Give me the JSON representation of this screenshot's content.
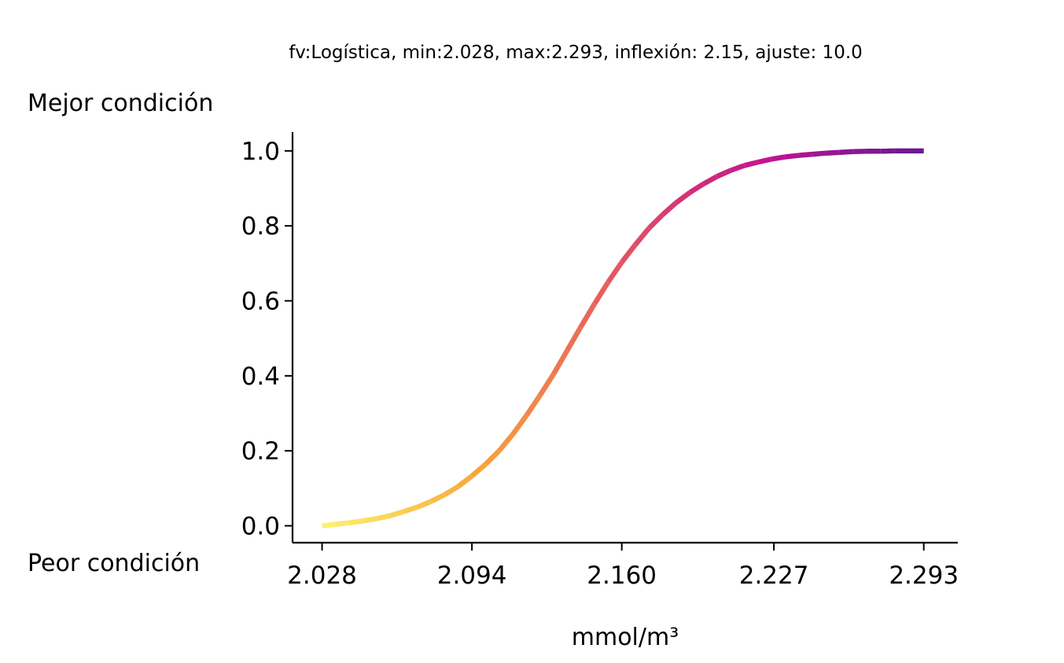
{
  "chart_data": {
    "type": "line",
    "title": "fv:Logística, min:2.028, max:2.293, inflexión: 2.15, ajuste: 10.0",
    "xlabel": "mmol/m³",
    "ylabel": "",
    "label_top": "Mejor condición",
    "label_bottom": "Peor condición",
    "xlim": [
      2.015,
      2.308
    ],
    "ylim": [
      -0.045,
      1.05
    ],
    "x_ticks": [
      2.028,
      2.094,
      2.16,
      2.227,
      2.293
    ],
    "x_tick_labels": [
      "2.028",
      "2.094",
      "2.160",
      "2.227",
      "2.293"
    ],
    "y_ticks": [
      0.0,
      0.2,
      0.4,
      0.6,
      0.8,
      1.0
    ],
    "y_tick_labels": [
      "0.0",
      "0.2",
      "0.4",
      "0.6",
      "0.8",
      "1.0"
    ],
    "colormap": [
      "#fcf070",
      "#f8d052",
      "#f7a83a",
      "#f07e50",
      "#e25563",
      "#cf2e78",
      "#c2148f",
      "#8f1691",
      "#6a1a8f"
    ],
    "series": [
      {
        "name": "Logística",
        "x": [
          2.028,
          2.034,
          2.04,
          2.046,
          2.052,
          2.058,
          2.064,
          2.07,
          2.076,
          2.082,
          2.088,
          2.094,
          2.1,
          2.106,
          2.112,
          2.118,
          2.124,
          2.13,
          2.136,
          2.142,
          2.148,
          2.154,
          2.16,
          2.166,
          2.172,
          2.178,
          2.184,
          2.19,
          2.196,
          2.202,
          2.208,
          2.214,
          2.22,
          2.226,
          2.232,
          2.238,
          2.244,
          2.25,
          2.256,
          2.262,
          2.268,
          2.274,
          2.28,
          2.286,
          2.293
        ],
        "values": [
          0.0,
          0.004,
          0.008,
          0.013,
          0.019,
          0.027,
          0.038,
          0.05,
          0.065,
          0.083,
          0.105,
          0.133,
          0.164,
          0.2,
          0.244,
          0.294,
          0.348,
          0.405,
          0.468,
          0.531,
          0.592,
          0.65,
          0.703,
          0.75,
          0.794,
          0.83,
          0.862,
          0.889,
          0.912,
          0.932,
          0.948,
          0.961,
          0.97,
          0.978,
          0.984,
          0.988,
          0.991,
          0.994,
          0.996,
          0.998,
          0.999,
          0.999,
          1.0,
          1.0,
          1.0
        ]
      }
    ]
  }
}
